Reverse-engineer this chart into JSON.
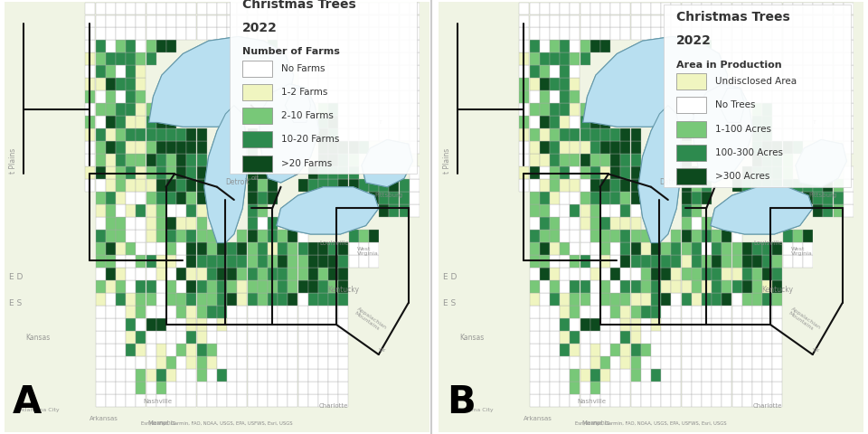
{
  "title_line1": "Christmas Trees",
  "title_line2": "2022",
  "panel_a_label": "A",
  "panel_b_label": "B",
  "legend_a_title": "Number of Farms",
  "legend_b_title": "Area in Production",
  "legend_a_entries": [
    {
      "label": "No Farms",
      "color": "#ffffff"
    },
    {
      "label": "1-2 Farms",
      "color": "#f0f5c0"
    },
    {
      "label": "2-10 Farms",
      "color": "#78c878"
    },
    {
      "label": "10-20 Farms",
      "color": "#2d8a4e"
    },
    {
      "label": ">20 Farms",
      "color": "#0d4a1e"
    }
  ],
  "legend_b_entries": [
    {
      "label": "Undisclosed Area",
      "color": "#f0f5c0"
    },
    {
      "label": "No Trees",
      "color": "#ffffff"
    },
    {
      "label": "1-100 Acres",
      "color": "#78c878"
    },
    {
      "label": "100-300 Acres",
      "color": "#2d8a4e"
    },
    {
      "label": ">300 Acres",
      "color": "#0d4a1e"
    }
  ],
  "bg_land_color": "#e8eedc",
  "bg_outer_color": "#f0f4e4",
  "water_color": "#b8dff0",
  "border_thick": "#111111",
  "border_thin": "#666666",
  "text_color": "#333333",
  "gray_text": "#888888",
  "fig_bg": "#ffffff"
}
